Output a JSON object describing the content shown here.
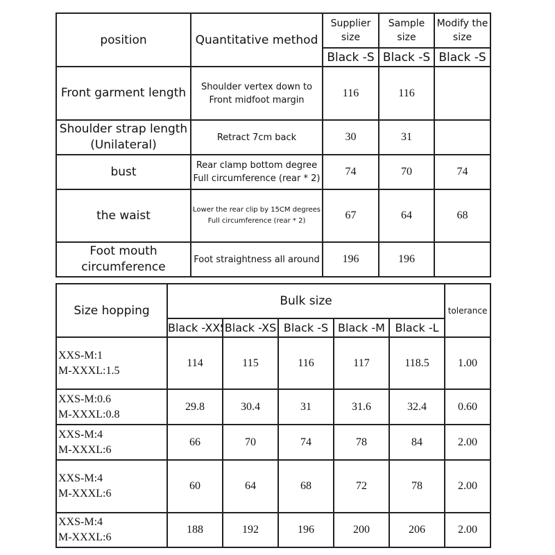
{
  "spec_table": {
    "headers": {
      "position": "position",
      "method": "Quantitative method",
      "supplier": "Supplier size",
      "sample": "Sample size",
      "modify": "Modify the size",
      "supplier_sub": "Black -S",
      "sample_sub": "Black -S",
      "modify_sub": "Black -S"
    },
    "rows": [
      {
        "position": "Front garment length",
        "method": "Shoulder vertex down to\nFront midfoot margin",
        "supplier": "116",
        "sample": "116",
        "modify": ""
      },
      {
        "position": "Shoulder strap length\n(Unilateral)",
        "method": "Retract 7cm back",
        "supplier": "30",
        "sample": "31",
        "modify": ""
      },
      {
        "position": "bust",
        "method": "Rear clamp bottom degree\nFull circumference (rear * 2)",
        "supplier": "74",
        "sample": "70",
        "modify": "74"
      },
      {
        "position": "the waist",
        "method": "Lower the rear clip by 15CM degrees\nFull circumference (rear * 2)",
        "supplier": "67",
        "sample": "64",
        "modify": "68"
      },
      {
        "position": "Foot mouth circumference",
        "method": "Foot straightness all around",
        "supplier": "196",
        "sample": "196",
        "modify": ""
      }
    ]
  },
  "grading_table": {
    "headers": {
      "size_hopping": "Size hopping",
      "bulk_size": "Bulk size",
      "tolerance": "tolerance",
      "sizes": [
        "Black -XXS",
        "Black -XS",
        "Black -S",
        "Black -M",
        "Black -L"
      ]
    },
    "rows": [
      {
        "hopping": "XXS-M:1\nM-XXXL:1.5",
        "values": [
          "114",
          "115",
          "116",
          "117",
          "118.5"
        ],
        "tolerance": "1.00"
      },
      {
        "hopping": "XXS-M:0.6\nM-XXXL:0.8",
        "values": [
          "29.8",
          "30.4",
          "31",
          "31.6",
          "32.4"
        ],
        "tolerance": "0.60"
      },
      {
        "hopping": "XXS-M:4\nM-XXXL:6",
        "values": [
          "66",
          "70",
          "74",
          "78",
          "84"
        ],
        "tolerance": "2.00"
      },
      {
        "hopping": "XXS-M:4\nM-XXXL:6",
        "values": [
          "60",
          "64",
          "68",
          "72",
          "78"
        ],
        "tolerance": "2.00"
      },
      {
        "hopping": "XXS-M:4\nM-XXXL:6",
        "values": [
          "188",
          "192",
          "196",
          "200",
          "206"
        ],
        "tolerance": "2.00"
      }
    ]
  }
}
